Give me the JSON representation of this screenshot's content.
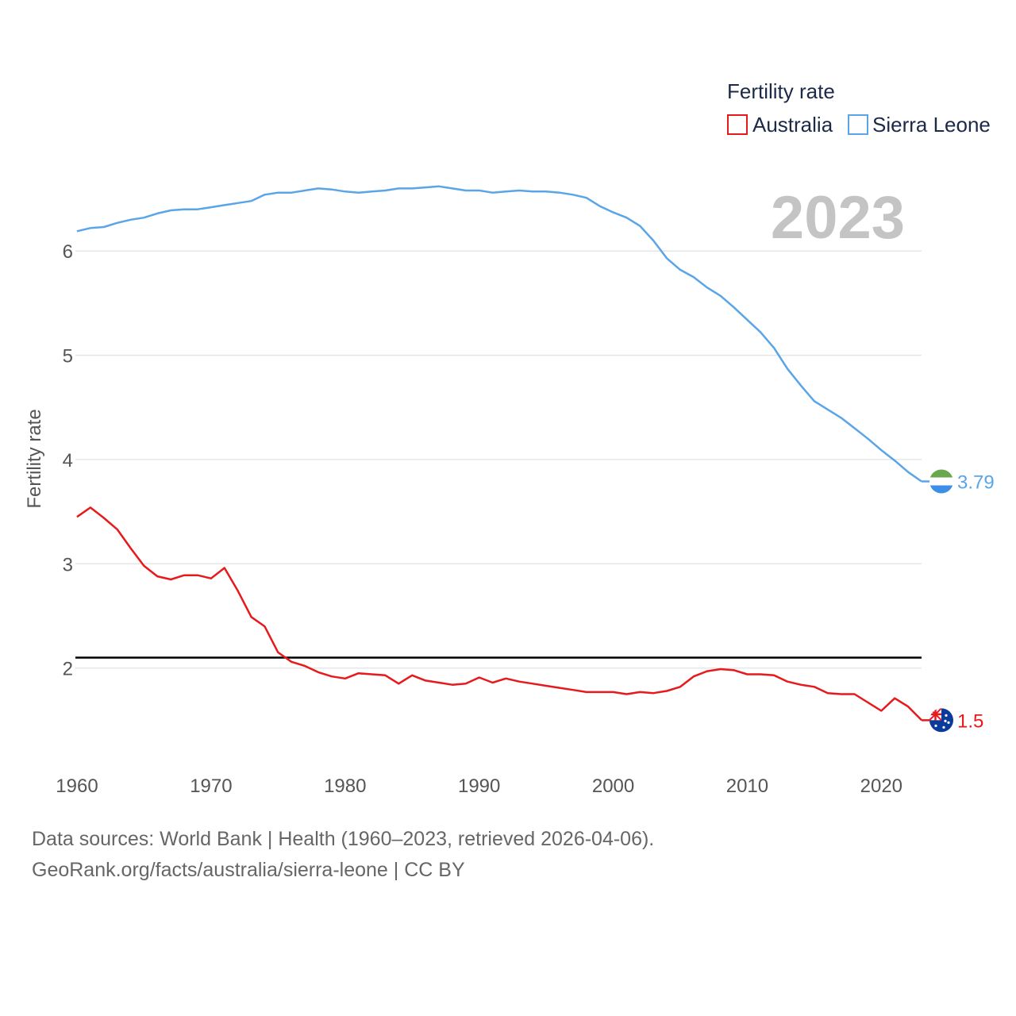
{
  "chart_data": {
    "type": "line",
    "title": "Fertility rate",
    "watermark_year": "2023",
    "xlabel": "",
    "ylabel": "Fertility rate",
    "xlim": [
      1960,
      2023
    ],
    "ylim": [
      1.0,
      6.9
    ],
    "x_ticks": [
      1960,
      1970,
      1980,
      1990,
      2000,
      2010,
      2020
    ],
    "y_ticks": [
      2,
      3,
      4,
      5,
      6
    ],
    "grid": true,
    "legend_position": "top-right",
    "reference_line": {
      "y": 2.1,
      "color": "#000000"
    },
    "x": [
      1960,
      1961,
      1962,
      1963,
      1964,
      1965,
      1966,
      1967,
      1968,
      1969,
      1970,
      1971,
      1972,
      1973,
      1974,
      1975,
      1976,
      1977,
      1978,
      1979,
      1980,
      1981,
      1982,
      1983,
      1984,
      1985,
      1986,
      1987,
      1988,
      1989,
      1990,
      1991,
      1992,
      1993,
      1994,
      1995,
      1996,
      1997,
      1998,
      1999,
      2000,
      2001,
      2002,
      2003,
      2004,
      2005,
      2006,
      2007,
      2008,
      2009,
      2010,
      2011,
      2012,
      2013,
      2014,
      2015,
      2016,
      2017,
      2018,
      2019,
      2020,
      2021,
      2022,
      2023
    ],
    "series": [
      {
        "name": "Australia",
        "color": "#e8191c",
        "end_label": "1.5",
        "flag": "australia-flag",
        "values": [
          3.45,
          3.54,
          3.44,
          3.33,
          3.15,
          2.98,
          2.88,
          2.85,
          2.89,
          2.89,
          2.86,
          2.96,
          2.74,
          2.49,
          2.4,
          2.15,
          2.06,
          2.02,
          1.96,
          1.92,
          1.9,
          1.95,
          1.94,
          1.93,
          1.85,
          1.93,
          1.88,
          1.86,
          1.84,
          1.85,
          1.91,
          1.86,
          1.9,
          1.87,
          1.85,
          1.83,
          1.81,
          1.79,
          1.77,
          1.77,
          1.77,
          1.75,
          1.77,
          1.76,
          1.78,
          1.82,
          1.92,
          1.97,
          1.99,
          1.98,
          1.94,
          1.94,
          1.93,
          1.87,
          1.84,
          1.82,
          1.76,
          1.75,
          1.75,
          1.67,
          1.59,
          1.71,
          1.63,
          1.5
        ]
      },
      {
        "name": "Sierra Leone",
        "color": "#5aa5e8",
        "end_label": "3.79",
        "flag": "sierra-leone-flag",
        "values": [
          6.19,
          6.22,
          6.23,
          6.27,
          6.3,
          6.32,
          6.36,
          6.39,
          6.4,
          6.4,
          6.42,
          6.44,
          6.46,
          6.48,
          6.54,
          6.56,
          6.56,
          6.58,
          6.6,
          6.59,
          6.57,
          6.56,
          6.57,
          6.58,
          6.6,
          6.6,
          6.61,
          6.62,
          6.6,
          6.58,
          6.58,
          6.56,
          6.57,
          6.58,
          6.57,
          6.57,
          6.56,
          6.54,
          6.51,
          6.43,
          6.37,
          6.32,
          6.24,
          6.1,
          5.93,
          5.82,
          5.75,
          5.65,
          5.57,
          5.46,
          5.34,
          5.22,
          5.07,
          4.87,
          4.71,
          4.56,
          4.48,
          4.4,
          4.3,
          4.2,
          4.09,
          3.99,
          3.88,
          3.79
        ]
      }
    ]
  },
  "footer": {
    "line1": "Data sources: World Bank | Health (1960–2023, retrieved 2026-04-06).",
    "line2": "GeoRank.org/facts/australia/sierra-leone | CC BY"
  }
}
